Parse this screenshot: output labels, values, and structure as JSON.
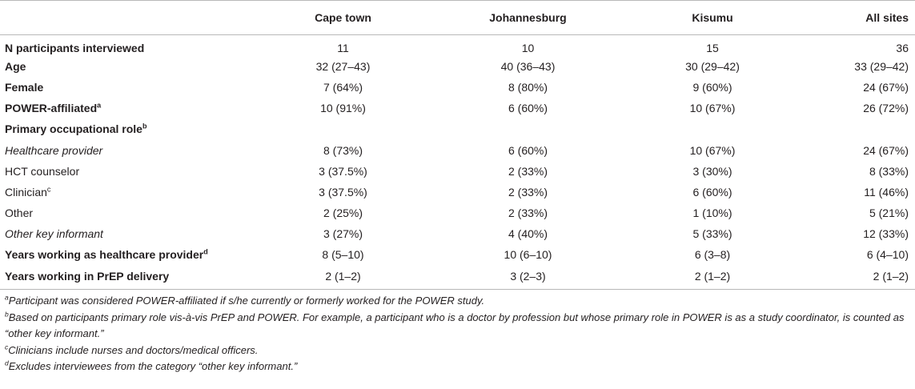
{
  "table": {
    "headers": [
      "",
      "Cape town",
      "Johannesburg",
      "Kisumu",
      "All sites"
    ],
    "rows": [
      {
        "label": "N participants interviewed",
        "sup": "",
        "style": "bold",
        "values": [
          "11",
          "10",
          "15",
          "36"
        ]
      },
      {
        "label": "Age",
        "sup": "",
        "style": "bold",
        "values": [
          "32 (27–43)",
          "40 (36–43)",
          "30 (29–42)",
          "33 (29–42)"
        ]
      },
      {
        "label": "Female",
        "sup": "",
        "style": "bold",
        "values": [
          "7 (64%)",
          "8 (80%)",
          "9 (60%)",
          "24 (67%)"
        ]
      },
      {
        "label": "POWER-affiliated",
        "sup": "a",
        "style": "bold",
        "values": [
          "10 (91%)",
          "6 (60%)",
          "10 (67%)",
          "26 (72%)"
        ]
      },
      {
        "label": "Primary occupational role",
        "sup": "b",
        "style": "bold",
        "values": [
          "",
          "",
          "",
          ""
        ]
      },
      {
        "label": "Healthcare provider",
        "sup": "",
        "style": "italic",
        "values": [
          "8 (73%)",
          "6 (60%)",
          "10 (67%)",
          "24 (67%)"
        ]
      },
      {
        "label": "HCT counselor",
        "sup": "",
        "style": "normal",
        "values": [
          "3 (37.5%)",
          "2 (33%)",
          "3 (30%)",
          "8 (33%)"
        ]
      },
      {
        "label": "Clinician",
        "sup": "c",
        "style": "normal",
        "values": [
          "3 (37.5%)",
          "2 (33%)",
          "6 (60%)",
          "11 (46%)"
        ]
      },
      {
        "label": "Other",
        "sup": "",
        "style": "normal",
        "values": [
          "2 (25%)",
          "2 (33%)",
          "1 (10%)",
          "5 (21%)"
        ]
      },
      {
        "label": "Other key informant",
        "sup": "",
        "style": "italic",
        "values": [
          "3 (27%)",
          "4 (40%)",
          "5 (33%)",
          "12 (33%)"
        ]
      },
      {
        "label": "Years working as healthcare provider",
        "sup": "d",
        "style": "bold",
        "values": [
          "8 (5–10)",
          "10 (6–10)",
          "6 (3–8)",
          "6 (4–10)"
        ]
      },
      {
        "label": "Years working in PrEP delivery",
        "sup": "",
        "style": "bold",
        "values": [
          "2 (1–2)",
          "3 (2–3)",
          "2 (1–2)",
          "2 (1–2)"
        ]
      }
    ]
  },
  "footnotes": [
    {
      "mark": "a",
      "text": "Participant was considered POWER-affiliated if s/he currently or formerly worked for the POWER study."
    },
    {
      "mark": "b",
      "text": "Based on participants primary role vis-à-vis PrEP and POWER. For example, a participant who is a doctor by profession but whose primary role in POWER is as a study coordinator, is counted as “other key informant.”"
    },
    {
      "mark": "c",
      "text": "Clinicians include nurses and doctors/medical officers."
    },
    {
      "mark": "d",
      "text": "Excludes interviewees from the category “other key informant.”"
    }
  ]
}
